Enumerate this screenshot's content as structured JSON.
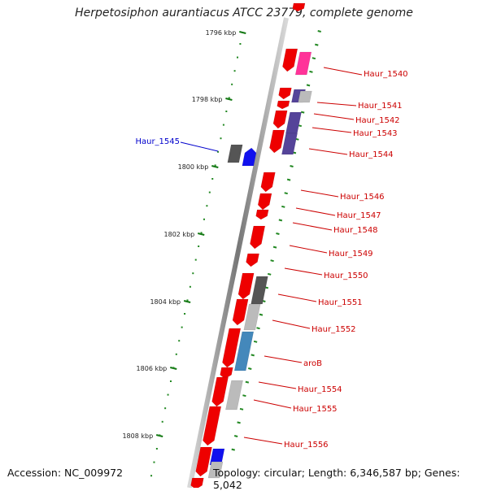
{
  "title": "Herpetosiphon aurantiacus ATCC 23779, complete genome",
  "accession": "Accession: NC_009972",
  "summary": "Topology: circular; Length: 6,346,587 bp; Genes: 5,042",
  "colors": {
    "backbone_dark": "#777777",
    "backbone_light": "#d8d8d8",
    "tick_major": "#117711",
    "tick_dot": "#228822",
    "gene_red": "#ee0000",
    "gene_pink": "#ff3399",
    "gene_purple": "#554499",
    "gene_blue": "#1111ee",
    "gene_dark_gray": "#555555",
    "gene_light_gray": "#bbbbbb",
    "gene_steel_blue": "#4488bb",
    "label_red": "#cc0000",
    "label_blue": "#0000cc"
  },
  "scale_labels": [
    "1796 kbp",
    "1798 kbp",
    "1800 kbp",
    "1802 kbp",
    "1804 kbp",
    "1806 kbp",
    "1808 kbp"
  ],
  "gene_labels": [
    {
      "text": "Haur_1540",
      "color": "red"
    },
    {
      "text": "Haur_1541",
      "color": "red"
    },
    {
      "text": "Haur_1542",
      "color": "red"
    },
    {
      "text": "Haur_1543",
      "color": "red"
    },
    {
      "text": "Haur_1544",
      "color": "red"
    },
    {
      "text": "Haur_1545",
      "color": "blue"
    },
    {
      "text": "Haur_1546",
      "color": "red"
    },
    {
      "text": "Haur_1547",
      "color": "red"
    },
    {
      "text": "Haur_1548",
      "color": "red"
    },
    {
      "text": "Haur_1549",
      "color": "red"
    },
    {
      "text": "Haur_1550",
      "color": "red"
    },
    {
      "text": "Haur_1551",
      "color": "red"
    },
    {
      "text": "Haur_1552",
      "color": "red"
    },
    {
      "text": "aroB",
      "color": "red"
    },
    {
      "text": "Haur_1554",
      "color": "red"
    },
    {
      "text": "Haur_1555",
      "color": "red"
    },
    {
      "text": "Haur_1556",
      "color": "red"
    }
  ]
}
